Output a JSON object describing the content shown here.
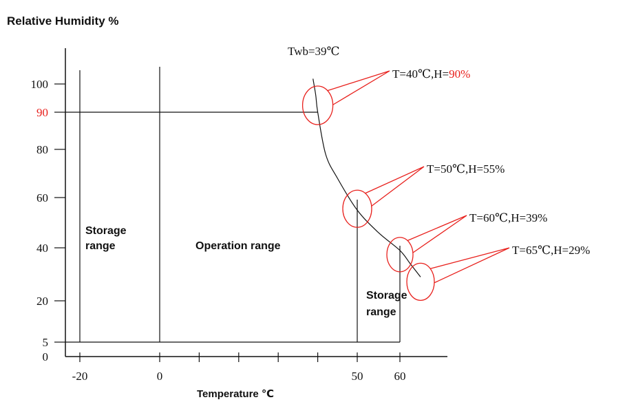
{
  "chart_data": {
    "type": "line",
    "title": "Relative Humidity %",
    "xlabel": "Temperature ℃",
    "ylabel": "",
    "x_ticks": [
      {
        "value": -20,
        "label": "-20"
      },
      {
        "value": 0,
        "label": "0"
      },
      {
        "value": 50,
        "label": "50"
      },
      {
        "value": 60,
        "label": "60"
      }
    ],
    "x_minor_ticks": [
      10,
      20,
      30,
      40
    ],
    "y_ticks": [
      {
        "value": 0,
        "label": "0",
        "highlight": false
      },
      {
        "value": 5,
        "label": "5",
        "highlight": false
      },
      {
        "value": 20,
        "label": "20",
        "highlight": false
      },
      {
        "value": 40,
        "label": "40",
        "highlight": false
      },
      {
        "value": 60,
        "label": "60",
        "highlight": false
      },
      {
        "value": 80,
        "label": "80",
        "highlight": false
      },
      {
        "value": 90,
        "label": "90",
        "highlight": true
      },
      {
        "value": 100,
        "label": "100",
        "highlight": false
      }
    ],
    "curve": {
      "label": "Twb=39℃",
      "points": [
        {
          "x": 38.8,
          "y": 102
        },
        {
          "x": 39.5,
          "y": 96
        },
        {
          "x": 40,
          "y": 90
        },
        {
          "x": 42,
          "y": 78
        },
        {
          "x": 45,
          "y": 68
        },
        {
          "x": 50,
          "y": 55
        },
        {
          "x": 55,
          "y": 46
        },
        {
          "x": 60,
          "y": 39
        },
        {
          "x": 62.5,
          "y": 34
        },
        {
          "x": 65,
          "y": 29
        }
      ]
    },
    "annotations": [
      {
        "x": 40,
        "y": 90,
        "text": "T=40℃,H=",
        "highlight": "90%"
      },
      {
        "x": 50,
        "y": 55,
        "text": "T=50℃,H=55%",
        "highlight": ""
      },
      {
        "x": 60,
        "y": 39,
        "text": "T=60℃,H=39%",
        "highlight": ""
      },
      {
        "x": 65,
        "y": 29,
        "text": "T=65℃,H=29%",
        "highlight": ""
      }
    ],
    "regions": [
      {
        "name": "storage-range-left",
        "lines": [
          "Storage",
          "range"
        ]
      },
      {
        "name": "operation-range",
        "lines": [
          "Operation range"
        ]
      },
      {
        "name": "storage-range-right",
        "lines": [
          "Storage",
          "range"
        ]
      }
    ],
    "colors": {
      "highlight": "#e8201c",
      "line": "#111111"
    }
  }
}
